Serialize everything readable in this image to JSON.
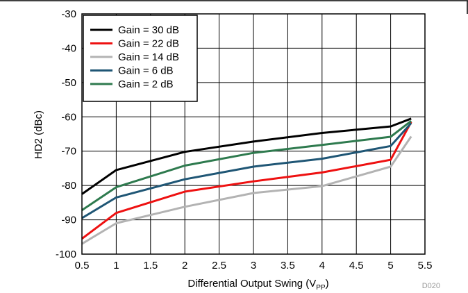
{
  "chart_data": {
    "type": "line",
    "title": "",
    "xlabel_main": "Differential Output Swing (V",
    "xlabel_sub": "PP",
    "xlabel_close": ")",
    "ylabel": "HD2 (dBc)",
    "xlim": [
      0.5,
      5.5
    ],
    "ylim": [
      -100,
      -30
    ],
    "xticks": [
      "0.5",
      "1",
      "1.5",
      "2",
      "2.5",
      "3",
      "3.5",
      "4",
      "4.5",
      "5",
      "5.5"
    ],
    "yticks": [
      "-30",
      "-40",
      "-50",
      "-60",
      "-70",
      "-80",
      "-90",
      "-100"
    ],
    "grid": true,
    "legend_position": "top-left",
    "figure_id": "D020",
    "series": [
      {
        "name": "Gain = 30 dB",
        "color": "#000000",
        "x": [
          0.5,
          1,
          2,
          3,
          4,
          5,
          5.3
        ],
        "y": [
          -82.5,
          -75.5,
          -70.2,
          -67.2,
          -64.7,
          -62.8,
          -60.5
        ]
      },
      {
        "name": "Gain = 22 dB",
        "color": "#ee1111",
        "x": [
          0.5,
          1,
          2,
          3,
          4,
          5,
          5.3
        ],
        "y": [
          -95.5,
          -88,
          -81.8,
          -78.8,
          -76.2,
          -72.5,
          -61.5
        ]
      },
      {
        "name": "Gain = 14 dB",
        "color": "#b3b3b3",
        "x": [
          0.5,
          1,
          2,
          3,
          4,
          5,
          5.3
        ],
        "y": [
          -97,
          -91,
          -86.2,
          -82.2,
          -80.2,
          -74.5,
          -65.7
        ]
      },
      {
        "name": "Gain = 6 dB",
        "color": "#1f5675",
        "x": [
          0.5,
          1,
          2,
          3,
          4,
          5,
          5.3
        ],
        "y": [
          -89.5,
          -83.5,
          -78.2,
          -74.5,
          -72.2,
          -68.5,
          -61.8
        ]
      },
      {
        "name": "Gain = 2 dB",
        "color": "#2e7a4e",
        "x": [
          0.5,
          1,
          2,
          3,
          4,
          5,
          5.3
        ],
        "y": [
          -87.2,
          -80.5,
          -74.2,
          -70.5,
          -68.2,
          -65.8,
          -61.2
        ]
      }
    ]
  }
}
